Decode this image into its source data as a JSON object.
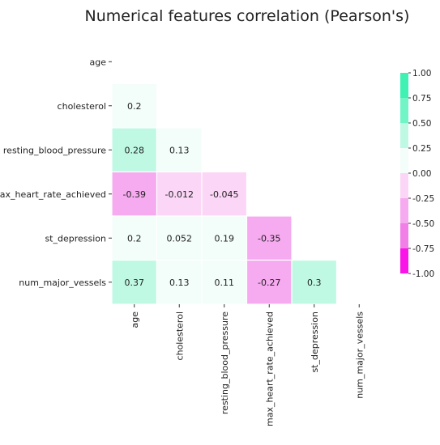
{
  "chart_data": {
    "type": "heatmap",
    "title": "Numerical features correlation (Pearson's)",
    "variables": [
      "age",
      "cholesterol",
      "resting_blood_pressure",
      "max_heart_rate_achieved",
      "st_depression",
      "num_major_vessels"
    ],
    "lower_triangle": [
      [],
      [
        0.2
      ],
      [
        0.28,
        0.13
      ],
      [
        -0.39,
        -0.012,
        -0.045
      ],
      [
        0.2,
        0.052,
        0.19,
        -0.35
      ],
      [
        0.37,
        0.13,
        0.11,
        -0.27,
        0.3
      ]
    ],
    "mask": "upper triangle including diagonal",
    "colorbar": {
      "range": [
        -1.0,
        1.0
      ],
      "ticks": [
        "1.00",
        "0.75",
        "0.50",
        "0.25",
        "0.00",
        "-0.25",
        "-0.50",
        "-0.75",
        "-1.00"
      ],
      "bins": [
        {
          "from": 0.75,
          "to": 1.0,
          "color": "#3ff2b4"
        },
        {
          "from": 0.5,
          "to": 0.75,
          "color": "#71f5c7"
        },
        {
          "from": 0.25,
          "to": 0.5,
          "color": "#bff9e4"
        },
        {
          "from": 0.0,
          "to": 0.25,
          "color": "#f3fdf9"
        },
        {
          "from": -0.25,
          "to": 0.0,
          "color": "#fbd6f6"
        },
        {
          "from": -0.5,
          "to": -0.25,
          "color": "#f6aaf0"
        },
        {
          "from": -0.75,
          "to": -0.5,
          "color": "#f27ee8"
        },
        {
          "from": -1.0,
          "to": -0.75,
          "color": "#fa14e8"
        }
      ]
    },
    "grid": false,
    "cell_separators": "white"
  }
}
